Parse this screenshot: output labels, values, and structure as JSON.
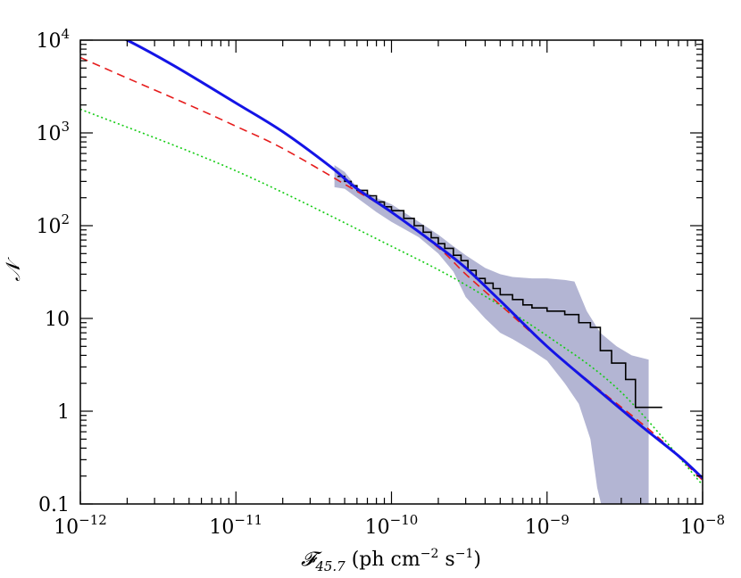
{
  "chart_data": {
    "type": "line",
    "xscale": "log",
    "yscale": "log",
    "xlim": [
      1e-12,
      1e-08
    ],
    "ylim": [
      0.1,
      10000
    ],
    "grid": false,
    "legend": "none",
    "xlabel": {
      "symbol": "𝓕",
      "subscript": "45.7",
      "units_prefix": " (ph  cm",
      "units_exp1": "−2",
      "units_mid": " s",
      "units_exp2": "−1",
      "units_suffix": ")"
    },
    "ylabel": "𝒩",
    "x_tick_labels": [
      {
        "value": 1e-12,
        "base": "10",
        "exp": "−12"
      },
      {
        "value": 1e-11,
        "base": "10",
        "exp": "−11"
      },
      {
        "value": 1e-10,
        "base": "10",
        "exp": "−10"
      },
      {
        "value": 1e-09,
        "base": "10",
        "exp": "−9"
      },
      {
        "value": 1e-08,
        "base": "10",
        "exp": "−8"
      }
    ],
    "y_tick_labels": [
      {
        "value": 0.1,
        "base": "0.1",
        "exp": ""
      },
      {
        "value": 1,
        "base": "1",
        "exp": ""
      },
      {
        "value": 10,
        "base": "10",
        "exp": ""
      },
      {
        "value": 100,
        "base": "10",
        "exp": "2"
      },
      {
        "value": 1000,
        "base": "10",
        "exp": "3"
      },
      {
        "value": 10000,
        "base": "10",
        "exp": "4"
      }
    ],
    "colors": {
      "total": "#1414e6",
      "dashed": "#e61c1c",
      "dotted": "#14cc14",
      "observed": "#000000",
      "band": "#b3b5d3"
    },
    "series": [
      {
        "style": "solid",
        "color_key": "total",
        "points": [
          [
            1.5e-12,
            12200
          ],
          [
            2e-12,
            10000
          ],
          [
            4e-12,
            5300
          ],
          [
            1e-11,
            2100
          ],
          [
            2e-11,
            1030
          ],
          [
            4e-11,
            440
          ],
          [
            6e-11,
            250
          ],
          [
            1e-10,
            140
          ],
          [
            2e-10,
            60
          ],
          [
            3e-10,
            35
          ],
          [
            5e-10,
            15.5
          ],
          [
            1e-09,
            5.0
          ],
          [
            2e-09,
            1.85
          ],
          [
            4e-09,
            0.7
          ],
          [
            7e-09,
            0.33
          ],
          [
            1e-08,
            0.19
          ]
        ]
      },
      {
        "style": "dashed",
        "color_key": "dashed",
        "points": [
          [
            1e-12,
            6500
          ],
          [
            2e-12,
            3900
          ],
          [
            5e-12,
            2000
          ],
          [
            1e-11,
            1180
          ],
          [
            2e-11,
            680
          ],
          [
            5e-11,
            280
          ],
          [
            1e-10,
            140
          ],
          [
            2e-10,
            58
          ],
          [
            3e-10,
            30
          ],
          [
            5e-10,
            14
          ],
          [
            1e-09,
            5.0
          ],
          [
            2e-09,
            1.9
          ],
          [
            5e-09,
            0.55
          ],
          [
            1e-08,
            0.18
          ]
        ]
      },
      {
        "style": "dotted",
        "color_key": "dotted",
        "points": [
          [
            1e-12,
            1800
          ],
          [
            1e-11,
            390
          ],
          [
            1e-10,
            60
          ],
          [
            3e-10,
            23
          ],
          [
            1e-09,
            6.5
          ],
          [
            3e-09,
            1.6
          ],
          [
            1e-08,
            0.16
          ]
        ]
      },
      {
        "style": "step",
        "color_key": "observed",
        "points": [
          [
            4.5e-11,
            340
          ],
          [
            5e-11,
            300
          ],
          [
            5.5e-11,
            270
          ],
          [
            6e-11,
            240
          ],
          [
            7e-11,
            210
          ],
          [
            8e-11,
            180
          ],
          [
            9e-11,
            160
          ],
          [
            1e-10,
            145
          ],
          [
            1.2e-10,
            120
          ],
          [
            1.4e-10,
            100
          ],
          [
            1.6e-10,
            85
          ],
          [
            1.8e-10,
            74
          ],
          [
            2e-10,
            64
          ],
          [
            2.2e-10,
            57
          ],
          [
            2.5e-10,
            48
          ],
          [
            2.8e-10,
            42
          ],
          [
            3.1e-10,
            33
          ],
          [
            3.5e-10,
            27
          ],
          [
            4e-10,
            24
          ],
          [
            4.5e-10,
            21
          ],
          [
            5e-10,
            18
          ],
          [
            6e-10,
            16
          ],
          [
            7e-10,
            14
          ],
          [
            8e-10,
            13
          ],
          [
            1e-09,
            12
          ],
          [
            1.3e-09,
            11
          ],
          [
            1.6e-09,
            9
          ],
          [
            1.9e-09,
            8
          ],
          [
            2.2e-09,
            4.5
          ],
          [
            2.6e-09,
            3.3
          ],
          [
            3.2e-09,
            2.2
          ],
          [
            3.7e-09,
            1.1
          ],
          [
            5.5e-09,
            1.1
          ]
        ]
      }
    ],
    "band": {
      "color_key": "band",
      "upper": [
        [
          4.3e-11,
          450
        ],
        [
          5e-11,
          380
        ],
        [
          6e-11,
          260
        ],
        [
          8e-11,
          200
        ],
        [
          1e-10,
          170
        ],
        [
          1.5e-10,
          110
        ],
        [
          2e-10,
          80
        ],
        [
          2.5e-10,
          60
        ],
        [
          3e-10,
          48
        ],
        [
          4e-10,
          35
        ],
        [
          5e-10,
          30
        ],
        [
          6e-10,
          28
        ],
        [
          8e-10,
          27
        ],
        [
          1e-09,
          27
        ],
        [
          1.3e-09,
          26
        ],
        [
          1.5e-09,
          25
        ],
        [
          1.8e-09,
          12
        ],
        [
          2.2e-09,
          7
        ],
        [
          2.8e-09,
          5
        ],
        [
          3.5e-09,
          4
        ],
        [
          4.5e-09,
          3.6
        ]
      ],
      "lower": [
        [
          4.3e-11,
          260
        ],
        [
          5e-11,
          250
        ],
        [
          6e-11,
          200
        ],
        [
          8e-11,
          140
        ],
        [
          1e-10,
          110
        ],
        [
          1.5e-10,
          75
        ],
        [
          2e-10,
          50
        ],
        [
          2.5e-10,
          32
        ],
        [
          3e-10,
          17
        ],
        [
          4e-10,
          10
        ],
        [
          5e-10,
          7
        ],
        [
          6e-10,
          6
        ],
        [
          8e-10,
          4.5
        ],
        [
          1e-09,
          3.5
        ],
        [
          1.3e-09,
          2.0
        ],
        [
          1.6e-09,
          1.2
        ],
        [
          1.9e-09,
          0.5
        ],
        [
          2.1e-09,
          0.15
        ],
        [
          2.3e-09,
          0.08
        ],
        [
          4.5e-09,
          0.08
        ]
      ]
    }
  }
}
